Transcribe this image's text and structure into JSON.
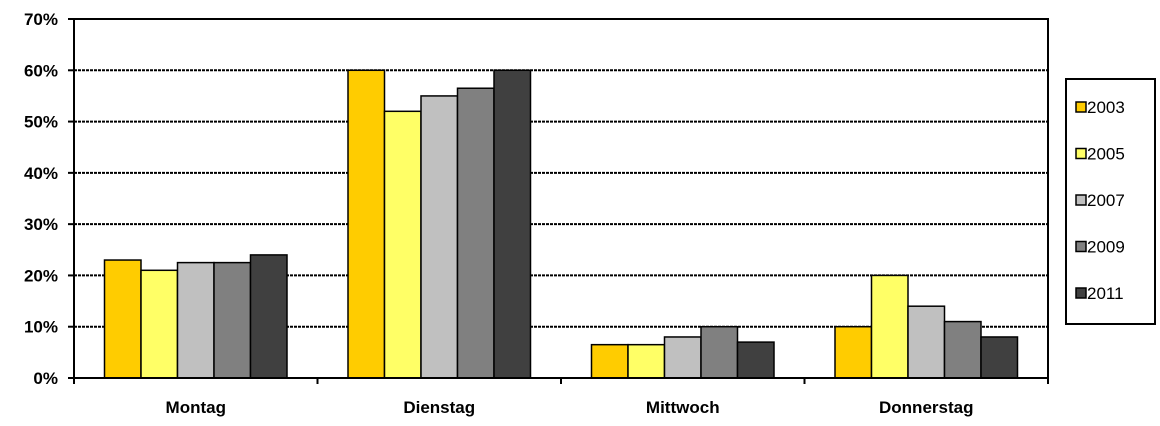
{
  "chart_data": {
    "type": "bar",
    "categories": [
      "Montag",
      "Dienstag",
      "Mittwoch",
      "Donnerstag"
    ],
    "series": [
      {
        "name": "2003",
        "color": "#FFCC00",
        "values": [
          23,
          60,
          6.5,
          10
        ]
      },
      {
        "name": "2005",
        "color": "#FFFF66",
        "values": [
          21,
          52,
          6.5,
          20
        ]
      },
      {
        "name": "2007",
        "color": "#C0C0C0",
        "values": [
          22.5,
          55,
          8,
          14
        ]
      },
      {
        "name": "2009",
        "color": "#808080",
        "values": [
          22.5,
          56.5,
          10,
          11
        ]
      },
      {
        "name": "2011",
        "color": "#404040",
        "values": [
          24,
          60,
          7,
          8
        ]
      }
    ],
    "yticks": [
      "0%",
      "10%",
      "20%",
      "30%",
      "40%",
      "50%",
      "60%",
      "70%"
    ],
    "ylim": [
      0,
      70
    ],
    "grid": true,
    "legend_position": "right",
    "title": "",
    "xlabel": "",
    "ylabel": ""
  }
}
